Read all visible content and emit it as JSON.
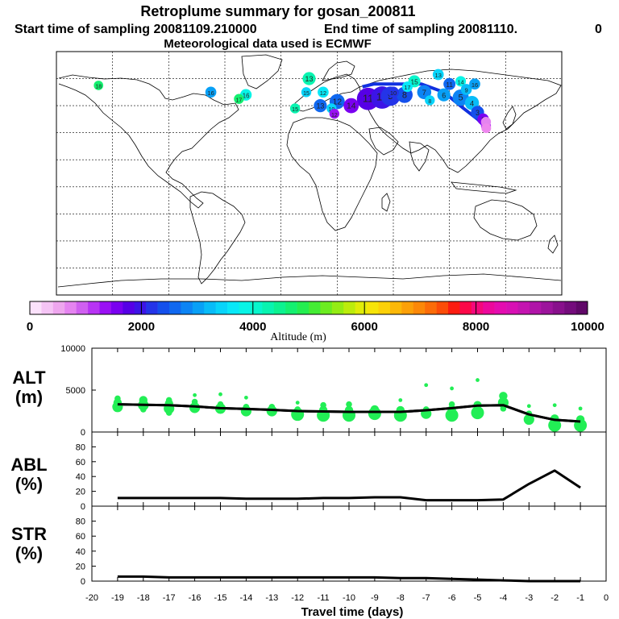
{
  "header": {
    "title": "Retroplume summary for gosan_200811",
    "start_label": "Start time of sampling 20081109.210000",
    "end_label": "End time of sampling 20081110.",
    "end_suffix": "0",
    "met_label": "Meteorological data used is ECMWF"
  },
  "colors": {
    "trajectory": "#1030e0",
    "alt_points": "#22ee55",
    "line": "#000000",
    "coast": "#000000",
    "grid": "#000000"
  },
  "colorbar": {
    "tick_labels": [
      "0",
      "2000",
      "4000",
      "6000",
      "8000",
      "10000"
    ],
    "title": "Altitude (m)",
    "min": 0,
    "max": 10000,
    "colors": [
      "#fbe1fb",
      "#f5c4f5",
      "#eea6ee",
      "#e584f0",
      "#d060f0",
      "#b834f4",
      "#9a10f4",
      "#7a00f0",
      "#5600e6",
      "#3c14e6",
      "#2434e8",
      "#1450ec",
      "#1068f0",
      "#0c84f4",
      "#08a0f6",
      "#08bcf8",
      "#08d4fa",
      "#08e8f8",
      "#08f4e6",
      "#08f6cc",
      "#08f4b0",
      "#0cf290",
      "#14f070",
      "#24ee50",
      "#44ec34",
      "#6cec20",
      "#94ec14",
      "#bcec0c",
      "#e0ec08",
      "#f6e408",
      "#fcd008",
      "#fcb808",
      "#fca008",
      "#fc8808",
      "#fc6c08",
      "#fc4c08",
      "#fc1c10",
      "#fc0848",
      "#f4087c",
      "#ec089c",
      "#e40cb0",
      "#d810b4",
      "#c414b0",
      "#b014a8",
      "#9c149c",
      "#88108c",
      "#740c7c",
      "#600868"
    ]
  },
  "map": {
    "lon_range": [
      -180,
      180
    ],
    "lat_range": [
      -90,
      90
    ],
    "release_site": {
      "lon": 126.2,
      "lat": 33.3
    },
    "trajectory_lonlat": [
      [
        126.2,
        33.3
      ],
      [
        120,
        40
      ],
      [
        110,
        48
      ],
      [
        96,
        60
      ],
      [
        80,
        66
      ],
      [
        60,
        66
      ],
      [
        46,
        66
      ],
      [
        38,
        64
      ]
    ],
    "clusters": [
      {
        "lon": 42,
        "lat": 55,
        "alt": 1800,
        "size": 3.4,
        "label": "11"
      },
      {
        "lon": 52,
        "lat": 56,
        "alt": 2000,
        "size": 3.4,
        "label": "10"
      },
      {
        "lon": 58,
        "lat": 57,
        "alt": 2200,
        "size": 2.8,
        "label": "9"
      },
      {
        "lon": 68,
        "lat": 58,
        "alt": 2300,
        "size": 2.2,
        "label": "8"
      },
      {
        "lon": 20,
        "lat": 53,
        "alt": 2500,
        "size": 2.0,
        "label": "12"
      },
      {
        "lon": 8,
        "lat": 50,
        "alt": 2600,
        "size": 1.6,
        "label": "13"
      },
      {
        "lon": 30,
        "lat": 50,
        "alt": 1600,
        "size": 2.0,
        "label": "14"
      },
      {
        "lon": 82,
        "lat": 60,
        "alt": 2800,
        "size": 1.8,
        "label": "7"
      },
      {
        "lon": 96,
        "lat": 58,
        "alt": 3000,
        "size": 1.6,
        "label": "6"
      },
      {
        "lon": 108,
        "lat": 56,
        "alt": 2900,
        "size": 2.2,
        "label": "5"
      },
      {
        "lon": 116,
        "lat": 52,
        "alt": 3200,
        "size": 1.8,
        "label": "4"
      },
      {
        "lon": 120,
        "lat": 45,
        "alt": 2400,
        "size": 1.6,
        "label": "3"
      },
      {
        "lon": 124,
        "lat": 40,
        "alt": 1500,
        "size": 1.3,
        "label": "2"
      },
      {
        "lon": 126,
        "lat": 35,
        "alt": 1200,
        "size": 1.0,
        "label": "1"
      },
      {
        "lon": 75,
        "lat": 68,
        "alt": 4000,
        "size": 1.4,
        "label": "15"
      },
      {
        "lon": 92,
        "lat": 73,
        "alt": 3400,
        "size": 1.2,
        "label": "13"
      },
      {
        "lon": 108,
        "lat": 68,
        "alt": 3800,
        "size": 1.1,
        "label": "14"
      },
      {
        "lon": 100,
        "lat": 66,
        "alt": 2600,
        "size": 1.4,
        "label": "11"
      },
      {
        "lon": 112,
        "lat": 62,
        "alt": 3200,
        "size": 1.2,
        "label": "9"
      },
      {
        "lon": 70,
        "lat": 64,
        "alt": 3600,
        "size": 1.1,
        "label": "17"
      },
      {
        "lon": 118,
        "lat": 66,
        "alt": 3000,
        "size": 1.2,
        "label": "16"
      },
      {
        "lon": 60,
        "lat": 60,
        "alt": 2100,
        "size": 1.2,
        "label": "10"
      },
      {
        "lon": 86,
        "lat": 54,
        "alt": 3500,
        "size": 1.0,
        "label": "8"
      },
      {
        "lon": 10,
        "lat": 60,
        "alt": 3600,
        "size": 1.2,
        "label": "12"
      },
      {
        "lon": 0,
        "lat": 70,
        "alt": 4200,
        "size": 1.6,
        "label": "13"
      },
      {
        "lon": -2,
        "lat": 60,
        "alt": 3400,
        "size": 1.0,
        "label": "15"
      },
      {
        "lon": -45,
        "lat": 58,
        "alt": 3800,
        "size": 1.3,
        "label": "16"
      },
      {
        "lon": -50,
        "lat": 55,
        "alt": 4600,
        "size": 1.0,
        "label": "17"
      },
      {
        "lon": -70,
        "lat": 60,
        "alt": 3000,
        "size": 1.2,
        "label": "16"
      },
      {
        "lon": -10,
        "lat": 48,
        "alt": 4200,
        "size": 1.0,
        "label": "15"
      },
      {
        "lon": -150,
        "lat": 65,
        "alt": 4600,
        "size": 0.9,
        "label": "18"
      },
      {
        "lon": 16,
        "lat": 48,
        "alt": 3500,
        "size": 1.0,
        "label": "10"
      },
      {
        "lon": 18,
        "lat": 44,
        "alt": 1300,
        "size": 1.0,
        "label": "12"
      },
      {
        "lon": 126,
        "lat": 38,
        "alt": 700,
        "size": 1.0,
        "label": ""
      }
    ]
  },
  "panels": {
    "alt": {
      "label_top": "ALT",
      "label_bottom": "(m)",
      "ymin": 0,
      "ymax": 10000,
      "yticks": [
        "0",
        "5000",
        "10000"
      ]
    },
    "abl": {
      "label_top": "ABL",
      "label_bottom": "(%)",
      "ymin": 0,
      "ymax": 100,
      "yticks": [
        "0",
        "20",
        "40",
        "60",
        "80"
      ]
    },
    "str": {
      "label_top": "STR",
      "label_bottom": "(%)",
      "ymin": 0,
      "ymax": 100,
      "yticks": [
        "0",
        "20",
        "40",
        "60",
        "80"
      ]
    },
    "x_tick_labels": [
      "-20",
      "-19",
      "-18",
      "-17",
      "-16",
      "-15",
      "-14",
      "-13",
      "-12",
      "-11",
      "-10",
      "-9",
      "-8",
      "-7",
      "-6",
      "-5",
      "-4",
      "-3",
      "-2",
      "-1",
      "0"
    ],
    "xlabel": "Travel time (days)"
  },
  "chart_data": {
    "type": "line",
    "title": "Retroplume summary for gosan_200811",
    "xlabel": "Travel time (days)",
    "xlim": [
      -20,
      0
    ],
    "x": [
      -19,
      -18,
      -17,
      -16,
      -15,
      -14,
      -13,
      -12,
      -11,
      -10,
      -9,
      -8,
      -7,
      -6,
      -5,
      -4,
      -3,
      -2,
      -1
    ],
    "series": [
      {
        "name": "ALT (m)",
        "ylim": [
          0,
          10000
        ],
        "values": [
          3300,
          3250,
          3200,
          3050,
          2850,
          2750,
          2650,
          2500,
          2450,
          2400,
          2400,
          2400,
          2600,
          2850,
          3150,
          3200,
          2100,
          1450,
          1250
        ]
      },
      {
        "name": "ABL (%)",
        "ylim": [
          0,
          100
        ],
        "values": [
          11,
          11,
          11,
          11,
          11,
          10,
          10,
          10,
          11,
          11,
          12,
          12,
          8,
          8,
          8,
          9,
          30,
          48,
          25
        ]
      },
      {
        "name": "STR (%)",
        "ylim": [
          0,
          100
        ],
        "values": [
          6,
          6,
          5,
          5,
          5,
          5,
          5,
          5,
          5,
          5,
          5,
          4,
          4,
          3,
          2,
          1,
          0,
          0,
          0
        ]
      }
    ],
    "alt_clusters": [
      {
        "x": -19,
        "points": [
          [
            3000,
            4
          ],
          [
            3500,
            3
          ],
          [
            4000,
            2
          ],
          [
            2800,
            2
          ]
        ]
      },
      {
        "x": -18,
        "points": [
          [
            3200,
            4
          ],
          [
            3800,
            3
          ],
          [
            2700,
            2
          ]
        ]
      },
      {
        "x": -17,
        "points": [
          [
            2800,
            4
          ],
          [
            3400,
            3
          ],
          [
            2300,
            2
          ],
          [
            3800,
            2
          ]
        ]
      },
      {
        "x": -16,
        "points": [
          [
            2900,
            4
          ],
          [
            3600,
            2
          ],
          [
            4400,
            1
          ]
        ]
      },
      {
        "x": -15,
        "points": [
          [
            2800,
            4
          ],
          [
            3300,
            2
          ],
          [
            4500,
            1
          ]
        ]
      },
      {
        "x": -14,
        "points": [
          [
            2500,
            4
          ],
          [
            3000,
            2
          ],
          [
            4100,
            1
          ]
        ]
      },
      {
        "x": -13,
        "points": [
          [
            2500,
            4
          ],
          [
            3000,
            2
          ]
        ]
      },
      {
        "x": -12,
        "points": [
          [
            2100,
            5
          ],
          [
            2700,
            2
          ],
          [
            3500,
            1
          ]
        ]
      },
      {
        "x": -11,
        "points": [
          [
            2000,
            5
          ],
          [
            2600,
            3
          ],
          [
            3200,
            2
          ]
        ]
      },
      {
        "x": -10,
        "points": [
          [
            2000,
            5
          ],
          [
            2600,
            3
          ],
          [
            3300,
            2
          ]
        ]
      },
      {
        "x": -9,
        "points": [
          [
            2200,
            5
          ],
          [
            2700,
            3
          ]
        ]
      },
      {
        "x": -8,
        "points": [
          [
            2000,
            5
          ],
          [
            2600,
            3
          ],
          [
            3800,
            1
          ]
        ]
      },
      {
        "x": -7,
        "points": [
          [
            2200,
            4
          ],
          [
            2700,
            2
          ],
          [
            5600,
            1
          ]
        ]
      },
      {
        "x": -6,
        "points": [
          [
            2000,
            5
          ],
          [
            2700,
            3
          ],
          [
            3300,
            2
          ],
          [
            5200,
            1
          ]
        ]
      },
      {
        "x": -5,
        "points": [
          [
            2300,
            5
          ],
          [
            3200,
            3
          ],
          [
            6200,
            1
          ]
        ]
      },
      {
        "x": -4,
        "points": [
          [
            3500,
            4
          ],
          [
            4300,
            3
          ],
          [
            2800,
            2
          ]
        ]
      },
      {
        "x": -3,
        "points": [
          [
            1500,
            4
          ],
          [
            2200,
            2
          ],
          [
            3100,
            1
          ]
        ]
      },
      {
        "x": -2,
        "points": [
          [
            800,
            5
          ],
          [
            1600,
            3
          ],
          [
            3200,
            1
          ]
        ]
      },
      {
        "x": -1,
        "points": [
          [
            800,
            5
          ],
          [
            1500,
            3
          ],
          [
            2800,
            1
          ]
        ]
      }
    ]
  }
}
